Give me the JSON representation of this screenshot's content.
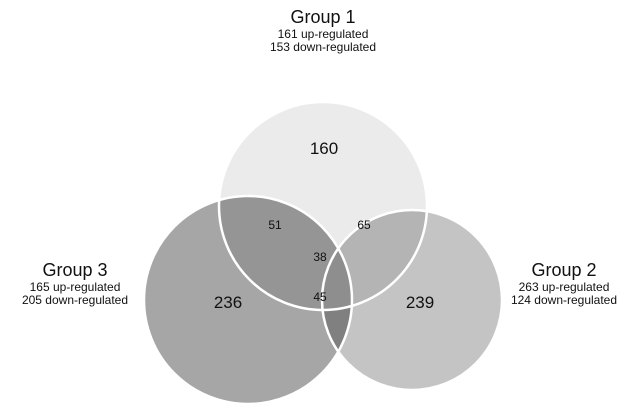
{
  "groups": [
    {
      "id": "g1",
      "name": "Group 1",
      "up": "161 up-regulated",
      "down": "153 down-regulated",
      "unique_count": "160"
    },
    {
      "id": "g2",
      "name": "Group 2",
      "up": "263 up-regulated",
      "down": "124 down-regulated",
      "unique_count": "239"
    },
    {
      "id": "g3",
      "name": "Group 3",
      "up": "165 up-regulated",
      "down": "205 down-regulated",
      "unique_count": "236"
    }
  ],
  "intersections": {
    "g1_g3": "51",
    "g1_g2": "65",
    "g2_g3": "45",
    "all": "38"
  },
  "colors": {
    "g1": "#ebebeb",
    "g2": "#c4c4c4",
    "g3": "#a6a6a6",
    "g1_g3": "#959595",
    "g1_g2": "#b4b4b4",
    "g2_g3": "#808080",
    "all": "#8e8e8e",
    "stroke": "#ffffff"
  }
}
